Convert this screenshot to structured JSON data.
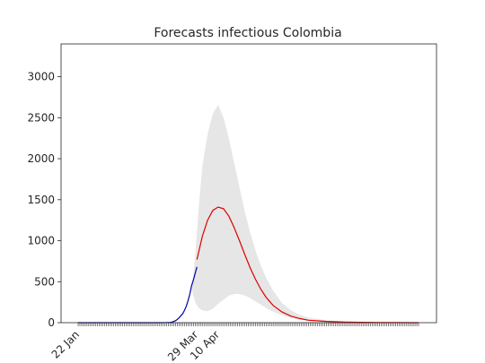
{
  "chart_data": {
    "type": "line",
    "title": "Forecasts infectious Colombia",
    "xlabel": "",
    "ylabel": "",
    "ylim": [
      0,
      3400
    ],
    "y_ticks": [
      0,
      500,
      1000,
      1500,
      2000,
      2500,
      3000
    ],
    "x_tick_labels": [
      {
        "label": "22 Jan",
        "day": 0
      },
      {
        "label": "29 Mar",
        "day": 67
      },
      {
        "label": "10 Apr",
        "day": 79
      }
    ],
    "x_day_range": [
      0,
      192
    ],
    "grid": false,
    "legend": "none",
    "series": [
      {
        "color": "#0000aa",
        "x": [
          0,
          10,
          20,
          30,
          40,
          45,
          50,
          52,
          53,
          54,
          55,
          56,
          57,
          58,
          59,
          60,
          61,
          62,
          63,
          64,
          65,
          66,
          67
        ],
        "y": [
          0,
          0,
          0,
          0,
          0,
          0,
          1,
          3,
          8,
          15,
          25,
          40,
          60,
          85,
          110,
          150,
          200,
          270,
          350,
          450,
          520,
          600,
          680
        ]
      },
      {
        "color": "#dd0000",
        "x": [
          67,
          70,
          73,
          76,
          79,
          82,
          85,
          88,
          91,
          94,
          97,
          100,
          103,
          106,
          110,
          115,
          120,
          125,
          130,
          140,
          150,
          160,
          170,
          180,
          192
        ],
        "y": [
          770,
          1050,
          1250,
          1370,
          1410,
          1390,
          1300,
          1160,
          1000,
          830,
          670,
          530,
          410,
          310,
          210,
          130,
          80,
          50,
          30,
          15,
          8,
          4,
          2,
          1,
          0
        ]
      },
      {
        "color": "#e6e6e6",
        "type": "area",
        "x": [
          64,
          66,
          68,
          70,
          73,
          76,
          79,
          82,
          85,
          88,
          91,
          94,
          97,
          100,
          103,
          106,
          110,
          115,
          120,
          125,
          130,
          140,
          150,
          160,
          170,
          180,
          192
        ],
        "upper": [
          400,
          800,
          1400,
          1900,
          2300,
          2550,
          2660,
          2500,
          2250,
          1950,
          1650,
          1350,
          1100,
          880,
          700,
          550,
          390,
          240,
          150,
          95,
          60,
          28,
          14,
          7,
          3,
          1,
          0
        ],
        "lower": [
          400,
          250,
          180,
          150,
          140,
          170,
          230,
          280,
          330,
          350,
          350,
          330,
          300,
          260,
          220,
          180,
          135,
          90,
          55,
          35,
          22,
          10,
          5,
          2,
          1,
          0,
          0
        ]
      }
    ]
  }
}
